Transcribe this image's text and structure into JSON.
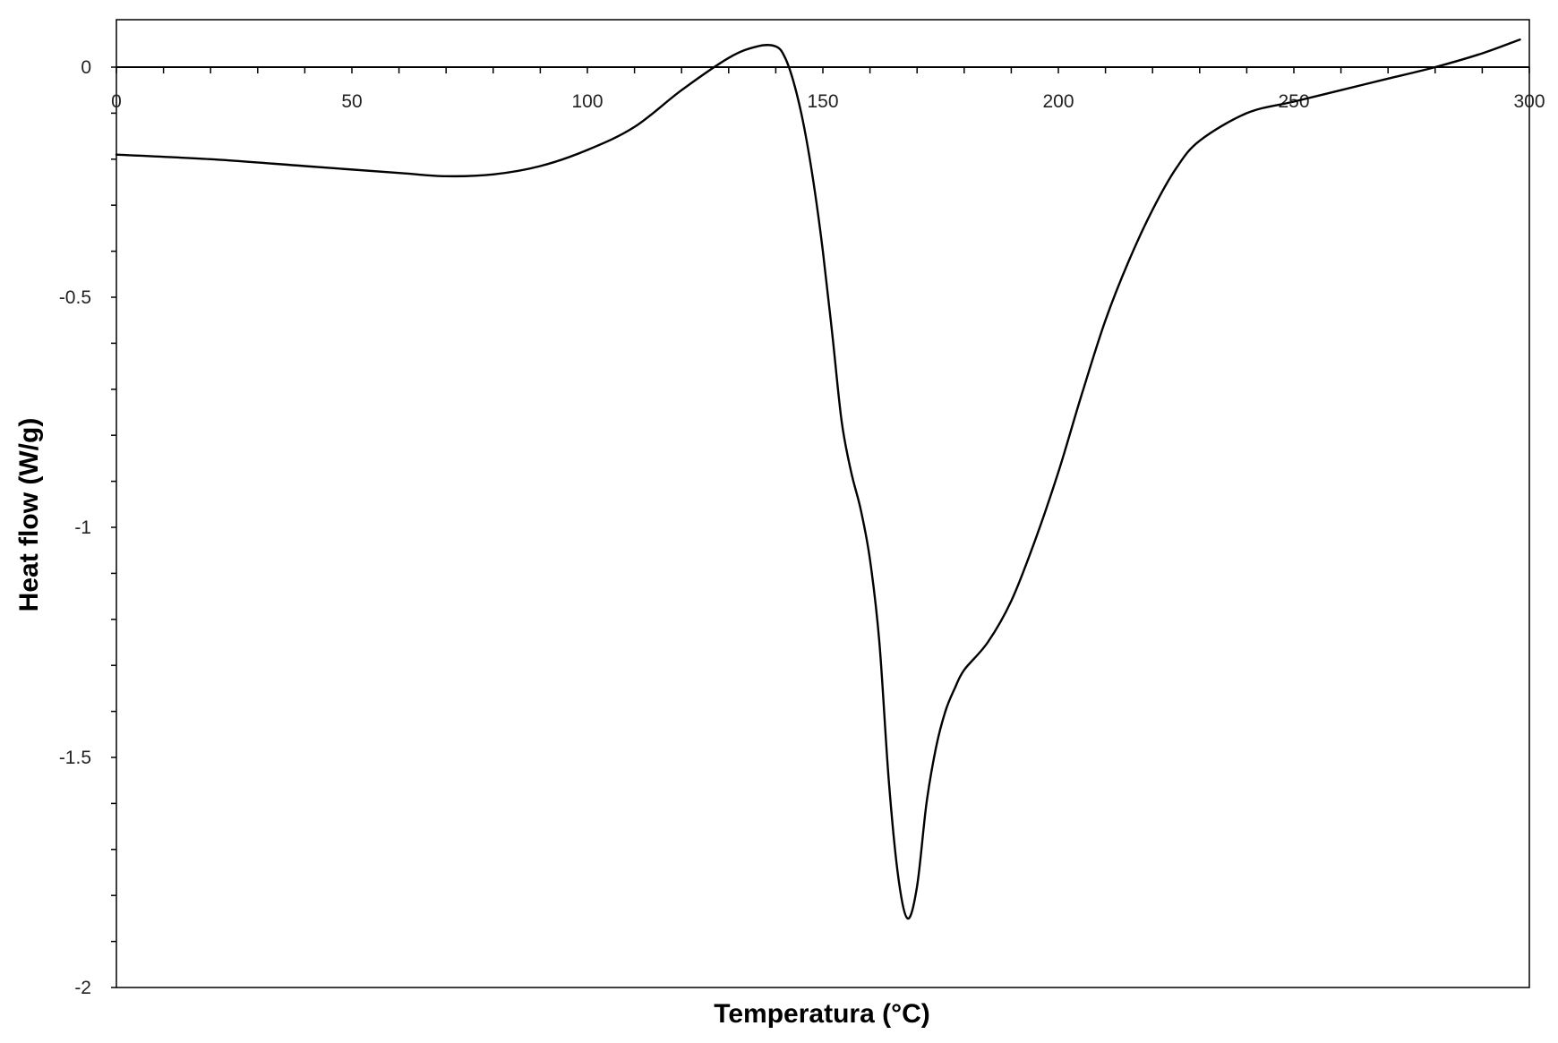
{
  "chart_data": {
    "type": "line",
    "title": "",
    "xlabel": "Temperatura (°C)",
    "ylabel": "Heat flow (W/g)",
    "xlim": [
      0,
      300
    ],
    "ylim": [
      -2,
      0.1
    ],
    "x_ticks": [
      0,
      50,
      100,
      150,
      200,
      250,
      300
    ],
    "x_tick_labels": [
      "0",
      "50",
      "100",
      "150",
      "200",
      "250",
      "300"
    ],
    "y_ticks": [
      0,
      -0.5,
      -1,
      -1.5,
      -2
    ],
    "y_tick_labels": [
      "0",
      "-0.5",
      "-1",
      "-1.5",
      "-2"
    ],
    "grid": false,
    "legend": "none",
    "line_color": "#000000",
    "series": [
      {
        "x": [
          0,
          20,
          40,
          60,
          70,
          80,
          90,
          100,
          110,
          120,
          130,
          136,
          140,
          142,
          144,
          146,
          148,
          150,
          152,
          154,
          156,
          158,
          160,
          162,
          164,
          166,
          168,
          170,
          172,
          174,
          176,
          178,
          180,
          185,
          190,
          195,
          200,
          205,
          210,
          215,
          220,
          225,
          230,
          240,
          250,
          260,
          270,
          280,
          290,
          298
        ],
        "y": [
          -0.19,
          -0.2,
          -0.215,
          -0.23,
          -0.237,
          -0.233,
          -0.215,
          -0.18,
          -0.13,
          -0.05,
          0.02,
          0.045,
          0.045,
          0.02,
          -0.04,
          -0.13,
          -0.25,
          -0.4,
          -0.58,
          -0.77,
          -0.88,
          -0.96,
          -1.07,
          -1.25,
          -1.55,
          -1.76,
          -1.85,
          -1.78,
          -1.6,
          -1.48,
          -1.4,
          -1.35,
          -1.31,
          -1.25,
          -1.16,
          -1.03,
          -0.88,
          -0.71,
          -0.55,
          -0.42,
          -0.31,
          -0.22,
          -0.16,
          -0.1,
          -0.075,
          -0.05,
          -0.025,
          0.0,
          0.03,
          0.06
        ]
      }
    ]
  }
}
